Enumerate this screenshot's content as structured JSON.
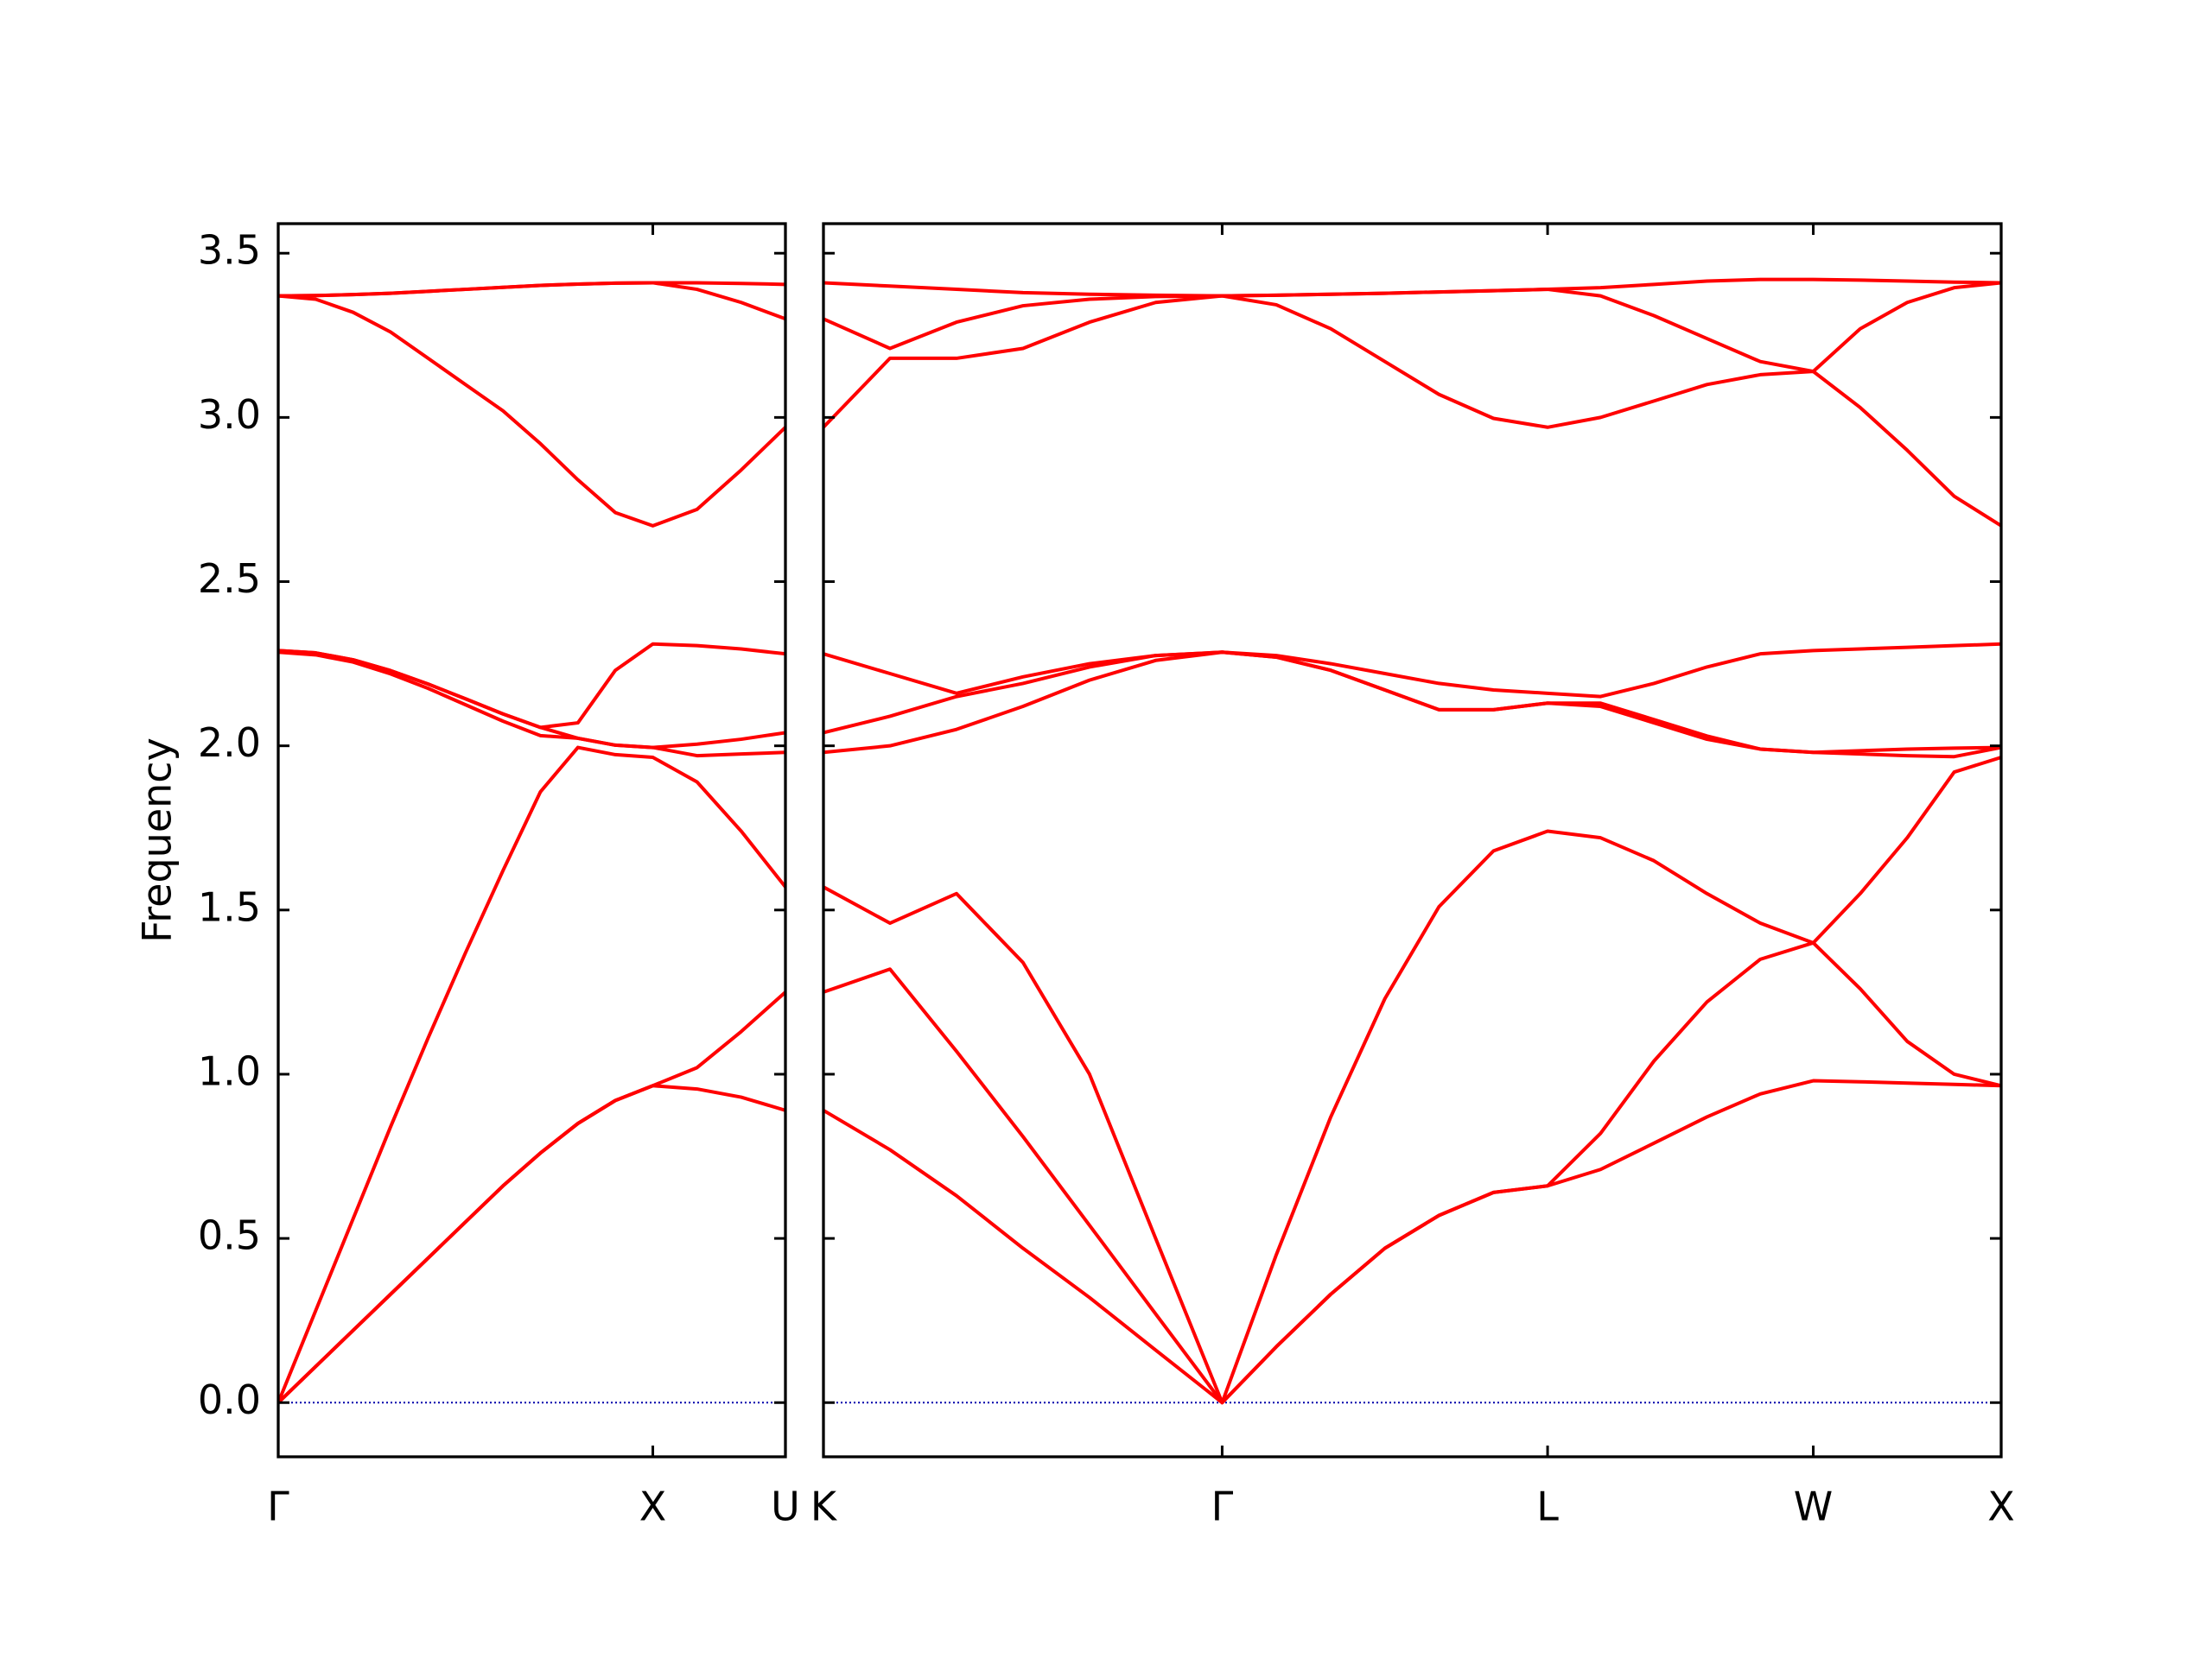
{
  "chart_data": [
    {
      "type": "line",
      "ylabel": "Frequency",
      "x": [
        0,
        0.1,
        0.2,
        0.3,
        0.4,
        0.5,
        0.6,
        0.7,
        0.8,
        0.9,
        1,
        1.118,
        1.236,
        1.354
      ],
      "xlim": [
        0,
        1.354
      ],
      "xticks": [
        {
          "value": 0,
          "label": "Γ"
        },
        {
          "value": 1,
          "label": "X"
        },
        {
          "value": 1.354,
          "label": "U"
        }
      ],
      "ylim": [
        -0.165,
        3.59
      ],
      "yticks": [
        {
          "value": 0,
          "label": "0.0"
        },
        {
          "value": 0.5,
          "label": "0.5"
        },
        {
          "value": 1,
          "label": "1.0"
        },
        {
          "value": 1.5,
          "label": "1.5"
        },
        {
          "value": 2,
          "label": "2.0"
        },
        {
          "value": 2.5,
          "label": "2.5"
        },
        {
          "value": 3,
          "label": "3.0"
        },
        {
          "value": 3.5,
          "label": "3.5"
        }
      ],
      "ytick_labels": true,
      "hline": 0,
      "hline_color": "#0000aa",
      "series": [
        {
          "color": "#ff0000",
          "values": [
            0,
            0.11,
            0.22,
            0.33,
            0.44,
            0.55,
            0.66,
            0.76,
            0.85,
            0.92,
            0.965,
            0.955,
            0.93,
            0.89
          ]
        },
        {
          "color": "#ff0000",
          "values": [
            0,
            0.11,
            0.22,
            0.33,
            0.44,
            0.55,
            0.66,
            0.76,
            0.85,
            0.92,
            0.965,
            1.02,
            1.13,
            1.25
          ]
        },
        {
          "color": "#ff0000",
          "values": [
            0,
            0.28,
            0.56,
            0.84,
            1.11,
            1.37,
            1.62,
            1.86,
            1.995,
            1.973,
            1.965,
            1.89,
            1.74,
            1.57
          ]
        },
        {
          "color": "#ff0000",
          "values": [
            2.285,
            2.277,
            2.255,
            2.219,
            2.175,
            2.125,
            2.075,
            2.031,
            2.023,
            2.002,
            1.995,
            1.97,
            1.975,
            1.98
          ]
        },
        {
          "color": "#ff0000",
          "values": [
            2.29,
            2.283,
            2.262,
            2.229,
            2.188,
            2.143,
            2.097,
            2.056,
            2.023,
            2.002,
            1.995,
            2.005,
            2.02,
            2.04
          ]
        },
        {
          "color": "#ff0000",
          "values": [
            2.29,
            2.283,
            2.262,
            2.229,
            2.188,
            2.143,
            2.097,
            2.056,
            2.07,
            2.23,
            2.31,
            2.305,
            2.295,
            2.28
          ]
        },
        {
          "color": "#ff0000",
          "values": [
            3.37,
            3.36,
            3.32,
            3.26,
            3.18,
            3.1,
            3.02,
            2.92,
            2.81,
            2.71,
            2.67,
            2.72,
            2.84,
            2.97
          ]
        },
        {
          "color": "#ff0000",
          "values": [
            3.37,
            3.371,
            3.374,
            3.378,
            3.384,
            3.39,
            3.396,
            3.402,
            3.406,
            3.409,
            3.41,
            3.39,
            3.35,
            3.3
          ]
        },
        {
          "color": "#ff0000",
          "values": [
            3.37,
            3.371,
            3.374,
            3.378,
            3.384,
            3.39,
            3.396,
            3.402,
            3.406,
            3.409,
            3.41,
            3.41,
            3.408,
            3.405
          ]
        }
      ]
    },
    {
      "type": "line",
      "x": [
        1.354,
        1.531,
        1.708,
        1.885,
        2.062,
        2.238,
        2.415,
        2.559,
        2.704,
        2.848,
        2.992,
        3.137,
        3.281,
        3.422,
        3.564,
        3.705,
        3.847,
        3.988,
        4.113,
        4.238,
        4.363,
        4.488
      ],
      "xlim": [
        1.354,
        4.488
      ],
      "xticks": [
        {
          "value": 1.354,
          "label": "K"
        },
        {
          "value": 2.415,
          "label": "Γ"
        },
        {
          "value": 3.281,
          "label": "L"
        },
        {
          "value": 3.988,
          "label": "W"
        },
        {
          "value": 4.488,
          "label": "X"
        }
      ],
      "ylim": [
        -0.165,
        3.59
      ],
      "yticks": [
        0,
        0.5,
        1,
        1.5,
        2,
        2.5,
        3,
        3.5
      ],
      "ytick_labels": false,
      "hline": 0,
      "hline_color": "#0000aa",
      "series": [
        {
          "color": "#ff0000",
          "values": [
            0.89,
            0.77,
            0.63,
            0.47,
            0.32,
            0.16,
            0,
            0.17,
            0.33,
            0.47,
            0.57,
            0.64,
            0.66,
            0.71,
            0.79,
            0.87,
            0.94,
            0.98,
            0.977,
            0.973,
            0.969,
            0.965
          ]
        },
        {
          "color": "#ff0000",
          "values": [
            1.25,
            1.32,
            1.07,
            0.81,
            0.54,
            0.27,
            0,
            0.17,
            0.33,
            0.47,
            0.57,
            0.64,
            0.66,
            0.82,
            1.04,
            1.22,
            1.35,
            1.4,
            1.26,
            1.1,
            1.0,
            0.965
          ]
        },
        {
          "color": "#ff0000",
          "values": [
            1.57,
            1.46,
            1.55,
            1.34,
            1.0,
            0.5,
            0,
            0.45,
            0.87,
            1.23,
            1.51,
            1.68,
            1.74,
            1.72,
            1.65,
            1.55,
            1.46,
            1.4,
            1.55,
            1.72,
            1.92,
            1.965
          ]
        },
        {
          "color": "#ff0000",
          "values": [
            1.98,
            2.0,
            2.05,
            2.12,
            2.2,
            2.26,
            2.285,
            2.27,
            2.23,
            2.17,
            2.11,
            2.11,
            2.13,
            2.12,
            2.07,
            2.02,
            1.99,
            1.98,
            1.975,
            1.97,
            1.967,
            1.995
          ]
        },
        {
          "color": "#ff0000",
          "values": [
            2.04,
            2.09,
            2.15,
            2.19,
            2.24,
            2.275,
            2.285,
            2.27,
            2.23,
            2.17,
            2.11,
            2.11,
            2.13,
            2.13,
            2.08,
            2.03,
            1.99,
            1.98,
            1.985,
            1.99,
            1.993,
            1.995
          ]
        },
        {
          "color": "#ff0000",
          "values": [
            2.28,
            2.22,
            2.16,
            2.21,
            2.25,
            2.275,
            2.285,
            2.275,
            2.25,
            2.22,
            2.19,
            2.17,
            2.16,
            2.15,
            2.19,
            2.24,
            2.28,
            2.29,
            2.295,
            2.3,
            2.305,
            2.31
          ]
        },
        {
          "color": "#ff0000",
          "values": [
            2.97,
            3.18,
            3.18,
            3.21,
            3.29,
            3.35,
            3.37,
            3.343,
            3.27,
            3.17,
            3.07,
            2.997,
            2.97,
            3.0,
            3.05,
            3.1,
            3.13,
            3.14,
            3.03,
            2.9,
            2.76,
            2.67
          ]
        },
        {
          "color": "#ff0000",
          "values": [
            3.3,
            3.21,
            3.29,
            3.34,
            3.36,
            3.368,
            3.37,
            3.372,
            3.375,
            3.378,
            3.382,
            3.386,
            3.39,
            3.37,
            3.31,
            3.24,
            3.17,
            3.14,
            3.27,
            3.35,
            3.395,
            3.41
          ]
        },
        {
          "color": "#ff0000",
          "values": [
            3.41,
            3.4,
            3.39,
            3.38,
            3.375,
            3.372,
            3.37,
            3.372,
            3.375,
            3.378,
            3.382,
            3.386,
            3.39,
            3.395,
            3.405,
            3.415,
            3.42,
            3.42,
            3.418,
            3.415,
            3.412,
            3.41
          ]
        }
      ]
    }
  ]
}
